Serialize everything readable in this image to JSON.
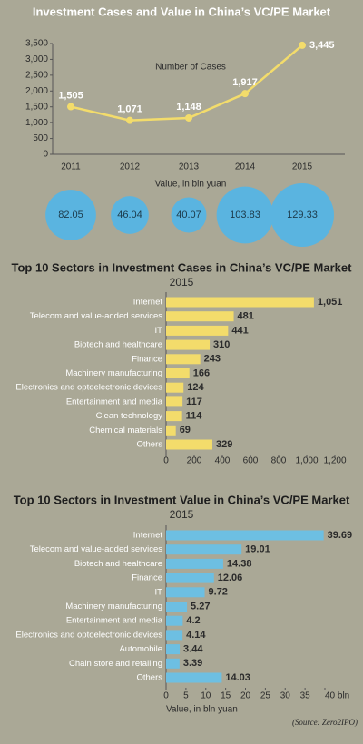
{
  "chart_data": [
    {
      "type": "line",
      "title": "Investment Cases and Value in China’s VC/PE Market",
      "categories": [
        "2011",
        "2012",
        "2013",
        "2014",
        "2015"
      ],
      "series": [
        {
          "name": "Number of Cases",
          "color": "#f3dc6b",
          "values": [
            1505,
            1071,
            1148,
            1917,
            3445
          ],
          "value_labels": [
            "1,505",
            "1,071",
            "1,148",
            "1,917",
            "3,445"
          ]
        }
      ],
      "ylim": [
        0,
        3500
      ],
      "yticks": [
        0,
        500,
        {
          "value": 1000,
          "label": "1,000"
        },
        {
          "value": 1500,
          "label": "1,500"
        },
        {
          "value": 2000,
          "label": "2,000"
        },
        {
          "value": 2500,
          "label": "2,500"
        },
        {
          "value": 3000,
          "label": "3,000"
        },
        {
          "value": 3500,
          "label": "3,500"
        }
      ]
    },
    {
      "type": "bubble",
      "title": "Value, in bln yuan",
      "color": "#5ab4e0",
      "values": [
        82.05,
        46.04,
        40.07,
        103.83,
        129.33
      ]
    },
    {
      "type": "barh",
      "title": "Top 10 Sectors in Investment Cases in China’s VC/PE Market",
      "subtitle": "2015",
      "color": "#f3dc6b",
      "categories": [
        "Internet",
        "Telecom and value-added services",
        "IT",
        "Biotech and healthcare",
        "Finance",
        "Machinery manufacturing",
        "Electronics and optoelectronic devices",
        "Entertainment and media",
        "Clean technology",
        "Chemical materials",
        "Others"
      ],
      "values": [
        1051,
        481,
        441,
        310,
        243,
        166,
        124,
        117,
        114,
        69,
        329
      ],
      "value_labels": [
        "1,051",
        "481",
        "441",
        "310",
        "243",
        "166",
        "124",
        "117",
        "114",
        "69",
        "329"
      ],
      "xlim": [
        0,
        1200
      ],
      "xticks": [
        0,
        200,
        400,
        600,
        800,
        {
          "value": 1000,
          "label": "1,000"
        },
        {
          "value": 1200,
          "label": "1,200"
        }
      ]
    },
    {
      "type": "barh",
      "title": "Top 10 Sectors in Investment Value in China’s VC/PE Market",
      "subtitle": "2015",
      "color": "#6dbfe2",
      "categories": [
        "Internet",
        "Telecom and value-added services",
        "Biotech and healthcare",
        "Finance",
        "IT",
        "Machinery manufacturing",
        "Entertainment and media",
        "Electronics and optoelectronic devices",
        "Automobile",
        "Chain store and retailing",
        "Others"
      ],
      "values": [
        39.69,
        19.01,
        14.38,
        12.06,
        9.72,
        5.27,
        4.2,
        4.14,
        3.44,
        3.39,
        14.03
      ],
      "xlim": [
        0,
        40
      ],
      "xticks": [
        0,
        5,
        10,
        15,
        20,
        25,
        30,
        35,
        {
          "value": 40,
          "label": "40 bln"
        }
      ],
      "xlabel": "Value, in bln yuan",
      "source": "(Source: Zero2IPO)"
    }
  ]
}
